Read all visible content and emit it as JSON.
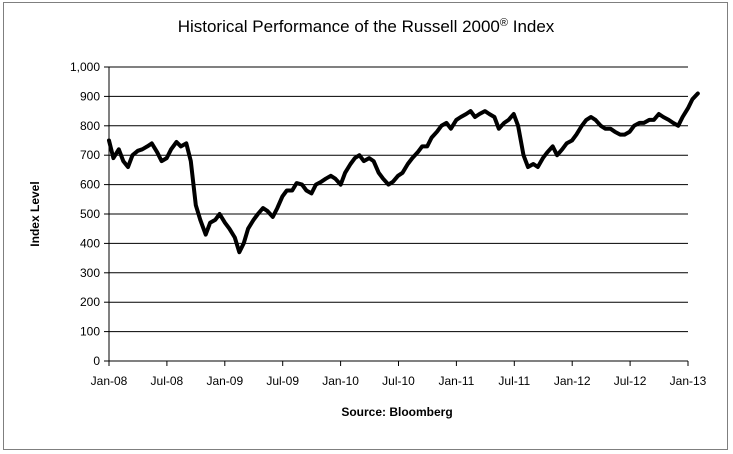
{
  "chart_data": {
    "type": "line",
    "title": "Historical Performance of the Russell 2000",
    "title_superscript": "®",
    "title_suffix": " Index",
    "ylabel": "Index Level",
    "xlabel": "Source: Bloomberg",
    "ylim": [
      0,
      1000
    ],
    "yticks": [
      0,
      100,
      200,
      300,
      400,
      500,
      600,
      700,
      800,
      900,
      1000
    ],
    "ytick_labels": [
      "0",
      "100",
      "200",
      "300",
      "400",
      "500",
      "600",
      "700",
      "800",
      "900",
      "1,000"
    ],
    "xlim": [
      "2008-01",
      "2013-02"
    ],
    "xticks": [
      "Jan-08",
      "Jul-08",
      "Jan-09",
      "Jul-09",
      "Jan-10",
      "Jul-10",
      "Jan-11",
      "Jul-11",
      "Jan-12",
      "Jul-12",
      "Jan-13"
    ],
    "grid": true,
    "legend": "none",
    "line_color": "#000000",
    "series": [
      {
        "x": [
          "2008-01-01",
          "2008-01-15",
          "2008-02-01",
          "2008-02-15",
          "2008-03-01",
          "2008-03-15",
          "2008-04-01",
          "2008-04-15",
          "2008-05-01",
          "2008-05-15",
          "2008-06-01",
          "2008-06-15",
          "2008-07-01",
          "2008-07-15",
          "2008-08-01",
          "2008-08-15",
          "2008-09-01",
          "2008-09-15",
          "2008-10-01",
          "2008-10-15",
          "2008-11-01",
          "2008-11-15",
          "2008-12-01",
          "2008-12-15",
          "2009-01-01",
          "2009-01-15",
          "2009-02-01",
          "2009-02-15",
          "2009-03-01",
          "2009-03-15",
          "2009-04-01",
          "2009-04-15",
          "2009-05-01",
          "2009-05-15",
          "2009-06-01",
          "2009-06-15",
          "2009-07-01",
          "2009-07-15",
          "2009-08-01",
          "2009-08-15",
          "2009-09-01",
          "2009-09-15",
          "2009-10-01",
          "2009-10-15",
          "2009-11-01",
          "2009-11-15",
          "2009-12-01",
          "2009-12-15",
          "2010-01-01",
          "2010-01-15",
          "2010-02-01",
          "2010-02-15",
          "2010-03-01",
          "2010-03-15",
          "2010-04-01",
          "2010-04-15",
          "2010-05-01",
          "2010-05-15",
          "2010-06-01",
          "2010-06-15",
          "2010-07-01",
          "2010-07-15",
          "2010-08-01",
          "2010-08-15",
          "2010-09-01",
          "2010-09-15",
          "2010-10-01",
          "2010-10-15",
          "2010-11-01",
          "2010-11-15",
          "2010-12-01",
          "2010-12-15",
          "2011-01-01",
          "2011-01-15",
          "2011-02-01",
          "2011-02-15",
          "2011-03-01",
          "2011-03-15",
          "2011-04-01",
          "2011-04-15",
          "2011-05-01",
          "2011-05-15",
          "2011-06-01",
          "2011-06-15",
          "2011-07-01",
          "2011-07-15",
          "2011-08-01",
          "2011-08-15",
          "2011-09-01",
          "2011-09-15",
          "2011-10-01",
          "2011-10-15",
          "2011-11-01",
          "2011-11-15",
          "2011-12-01",
          "2011-12-15",
          "2012-01-01",
          "2012-01-15",
          "2012-02-01",
          "2012-02-15",
          "2012-03-01",
          "2012-03-15",
          "2012-04-01",
          "2012-04-15",
          "2012-05-01",
          "2012-05-15",
          "2012-06-01",
          "2012-06-15",
          "2012-07-01",
          "2012-07-15",
          "2012-08-01",
          "2012-08-15",
          "2012-09-01",
          "2012-09-15",
          "2012-10-01",
          "2012-10-15",
          "2012-11-01",
          "2012-11-15",
          "2012-12-01",
          "2012-12-15",
          "2013-01-01",
          "2013-01-15",
          "2013-02-01"
        ],
        "y": [
          750,
          690,
          720,
          680,
          660,
          700,
          715,
          720,
          730,
          740,
          710,
          680,
          690,
          720,
          745,
          730,
          740,
          680,
          530,
          480,
          430,
          470,
          480,
          500,
          470,
          450,
          420,
          370,
          400,
          450,
          480,
          500,
          520,
          510,
          490,
          520,
          560,
          580,
          580,
          605,
          600,
          580,
          570,
          600,
          610,
          620,
          630,
          620,
          600,
          640,
          670,
          690,
          700,
          680,
          690,
          680,
          640,
          620,
          600,
          610,
          630,
          640,
          670,
          690,
          710,
          730,
          730,
          760,
          780,
          800,
          810,
          790,
          820,
          830,
          840,
          850,
          830,
          840,
          850,
          840,
          830,
          790,
          810,
          820,
          840,
          800,
          700,
          660,
          670,
          660,
          690,
          710,
          730,
          700,
          720,
          740,
          750,
          770,
          800,
          820,
          830,
          820,
          800,
          790,
          790,
          780,
          770,
          770,
          780,
          800,
          810,
          810,
          820,
          820,
          840,
          830,
          820,
          810,
          800,
          830,
          860,
          890,
          910
        ]
      }
    ]
  }
}
